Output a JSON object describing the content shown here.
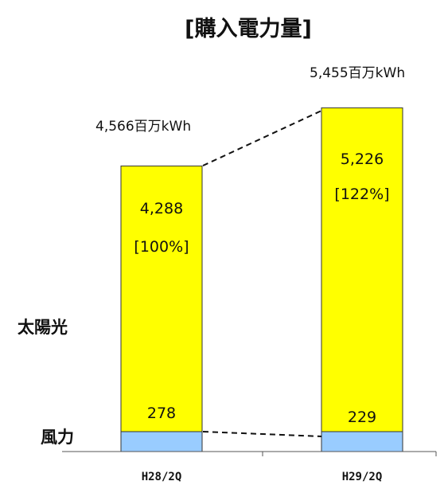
{
  "chart_data": {
    "type": "bar",
    "stacked": true,
    "title": "[購入電力量]",
    "categories": [
      "H28/2Q",
      "H29/2Q"
    ],
    "unit": "百万kWh",
    "series": [
      {
        "name": "風力",
        "values": [
          278,
          229
        ],
        "color": "#99ccff"
      },
      {
        "name": "太陽光",
        "values": [
          4288,
          5226
        ],
        "color": "#ffff00"
      }
    ],
    "totals": [
      "4,566百万kWh",
      "5,455百万kWh"
    ],
    "value_labels": {
      "solar": [
        "4,288",
        "5,226"
      ],
      "wind": [
        "278",
        "229"
      ]
    },
    "ratio_labels": [
      "[100%]",
      "[122%]"
    ],
    "connector_lines": "dashed",
    "legend": "left, beside series",
    "grid": false
  }
}
